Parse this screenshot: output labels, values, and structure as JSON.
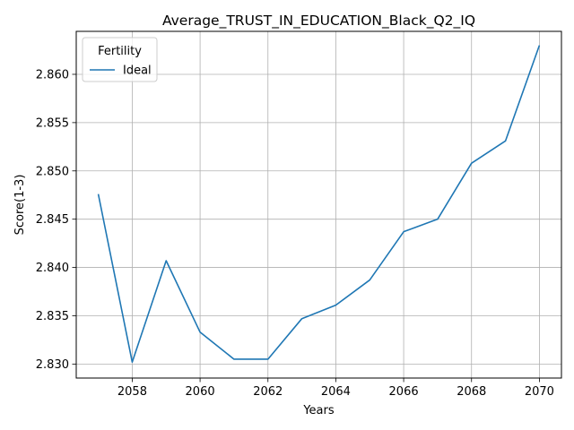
{
  "chart_data": {
    "type": "line",
    "title": "Average_TRUST_IN_EDUCATION_Black_Q2_IQ",
    "xlabel": "Years",
    "ylabel": "Score(1-3)",
    "x": [
      2057,
      2058,
      2059,
      2060,
      2061,
      2062,
      2063,
      2064,
      2065,
      2066,
      2067,
      2068,
      2069,
      2070
    ],
    "series": [
      {
        "name": "Ideal",
        "color": "#1f77b4",
        "values": [
          2.8476,
          2.8302,
          2.8407,
          2.8333,
          2.8305,
          2.8305,
          2.8347,
          2.8361,
          2.8387,
          2.8437,
          2.845,
          2.8508,
          2.8531,
          2.863
        ]
      }
    ],
    "xlim": [
      2056.35,
      2070.65
    ],
    "ylim": [
      2.82855,
      2.86445
    ],
    "xticks": [
      2058,
      2060,
      2062,
      2064,
      2066,
      2068,
      2070
    ],
    "yticks": [
      2.83,
      2.835,
      2.84,
      2.845,
      2.85,
      2.855,
      2.86
    ],
    "ytick_labels": [
      "2.830",
      "2.835",
      "2.840",
      "2.845",
      "2.850",
      "2.855",
      "2.860"
    ],
    "grid": true,
    "legend": {
      "title": "Fertility",
      "position": "top-left"
    }
  }
}
